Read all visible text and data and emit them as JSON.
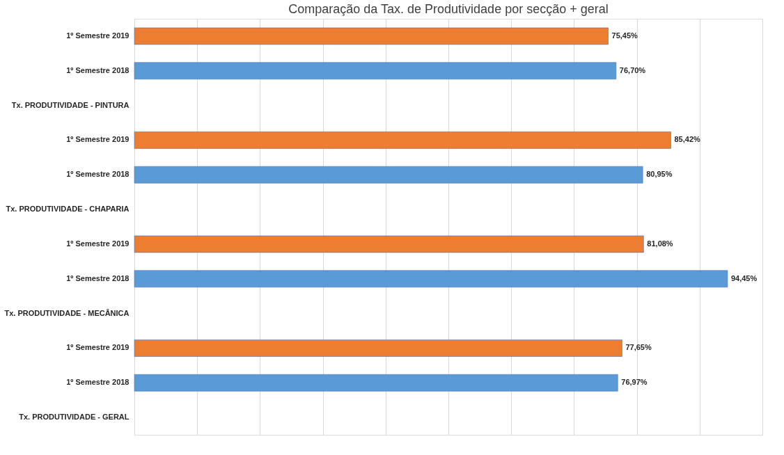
{
  "chart_data": {
    "type": "bar",
    "orientation": "horizontal",
    "title": "Comparação  da Tax. de Produtividade  por secção + geral",
    "categories": [
      "1º Semestre 2019",
      "1º Semestre 2018",
      "Tx. PRODUTIVIDADE - PINTURA",
      "1º Semestre 2019",
      "1º Semestre 2018",
      "Tx. PRODUTIVIDADE - CHAPARIA",
      "1º Semestre 2019",
      "1º Semestre 2018",
      "Tx. PRODUTIVIDADE - MECÂNICA",
      "1º Semestre 2019",
      "1º Semestre 2018",
      "Tx. PRODUTIVIDADE - GERAL"
    ],
    "values": [
      75.45,
      76.7,
      null,
      85.42,
      80.95,
      null,
      81.08,
      94.45,
      null,
      77.65,
      76.97,
      null
    ],
    "colors": [
      "#ed7d31",
      "#5b9bd5",
      null,
      "#ed7d31",
      "#5b9bd5",
      null,
      "#ed7d31",
      "#5b9bd5",
      null,
      "#ed7d31",
      "#5b9bd5",
      null
    ],
    "value_labels": [
      "75,45%",
      "76,70%",
      null,
      "85,42%",
      "80,95%",
      null,
      "81,08%",
      "94,45%",
      null,
      "77,65%",
      "76,97%",
      null
    ],
    "xlim": [
      0,
      100
    ],
    "xticks": [
      {
        "value": 0,
        "label": null
      },
      {
        "value": 10,
        "label": null
      },
      {
        "value": 20,
        "label": null
      },
      {
        "value": 30,
        "label": null
      },
      {
        "value": 40,
        "label": null
      },
      {
        "value": 50,
        "label": null
      },
      {
        "value": 60,
        "label": null
      },
      {
        "value": 70,
        "label": null
      },
      {
        "value": 80,
        "label": null
      },
      {
        "value": 90,
        "label": null
      },
      {
        "value": 100,
        "label": null
      }
    ],
    "grid": "x"
  }
}
